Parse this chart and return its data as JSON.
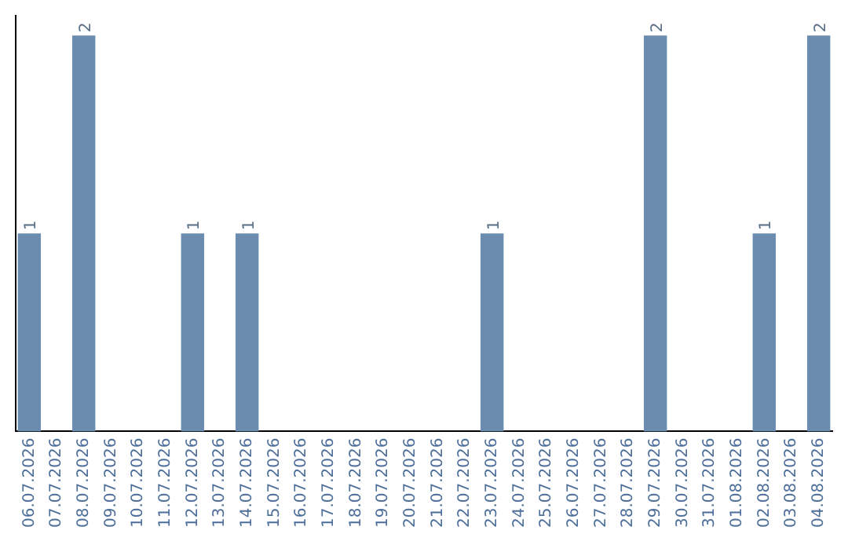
{
  "chart_data": {
    "type": "bar",
    "categories": [
      "06.07.2026",
      "07.07.2026",
      "08.07.2026",
      "09.07.2026",
      "10.07.2026",
      "11.07.2026",
      "12.07.2026",
      "13.07.2026",
      "14.07.2026",
      "15.07.2026",
      "16.07.2026",
      "17.07.2026",
      "18.07.2026",
      "19.07.2026",
      "20.07.2026",
      "21.07.2026",
      "22.07.2026",
      "23.07.2026",
      "24.07.2026",
      "25.07.2026",
      "26.07.2026",
      "27.07.2026",
      "28.07.2026",
      "29.07.2026",
      "30.07.2026",
      "31.07.2026",
      "01.08.2026",
      "02.08.2026",
      "03.08.2026",
      "04.08.2026"
    ],
    "values": [
      1,
      null,
      2,
      null,
      null,
      null,
      1,
      null,
      1,
      null,
      null,
      null,
      null,
      null,
      null,
      null,
      null,
      1,
      null,
      null,
      null,
      null,
      null,
      2,
      null,
      null,
      null,
      1,
      null,
      2
    ],
    "color": "#6b8cae",
    "ylim": [
      0,
      2.1
    ],
    "tick_labels": "x",
    "data_labels": true,
    "grid": false,
    "legend": false
  }
}
